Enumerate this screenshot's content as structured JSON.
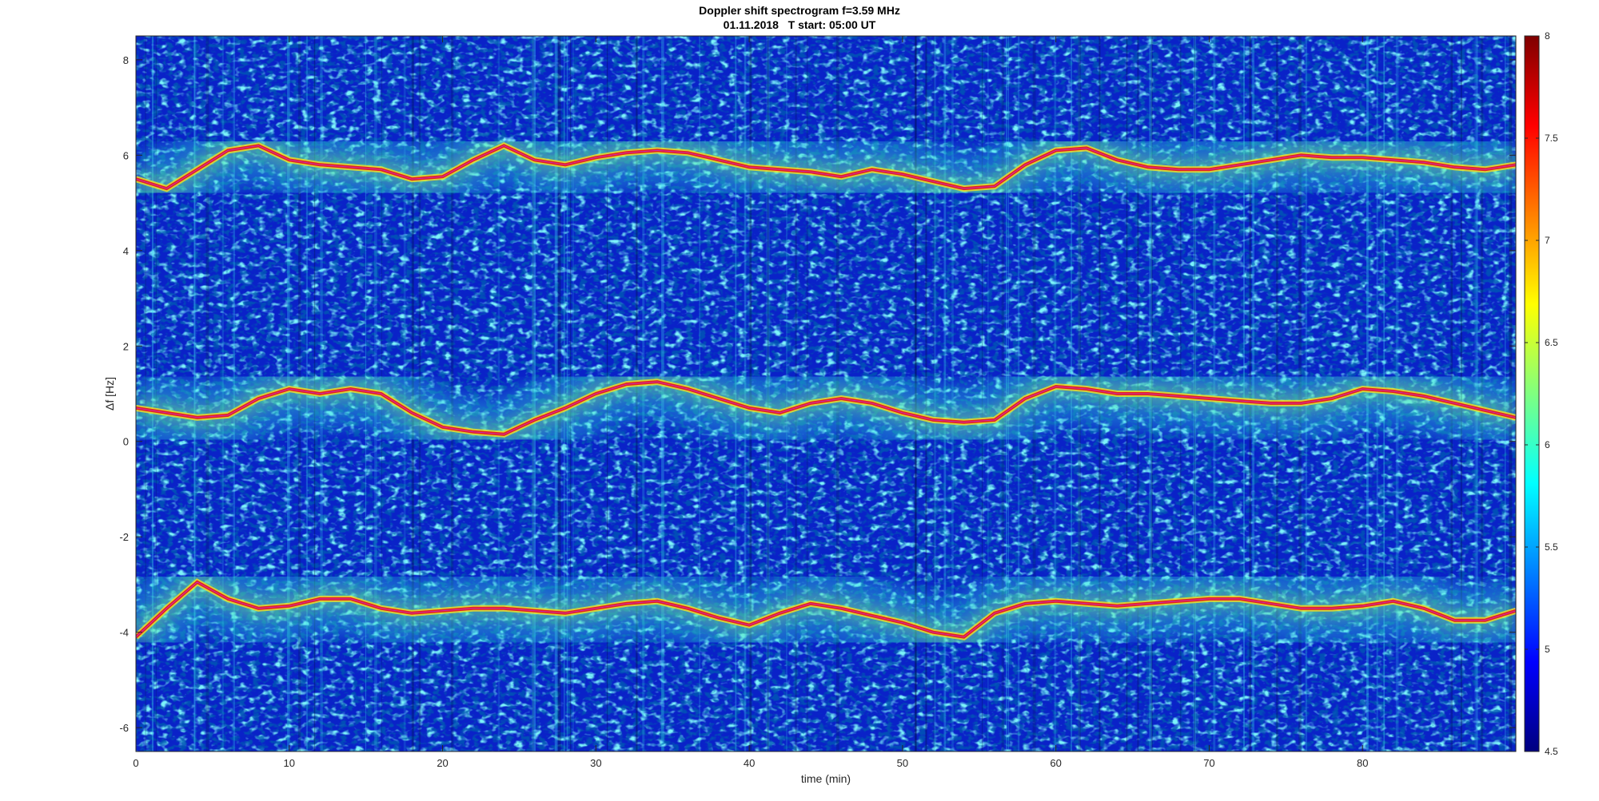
{
  "chart_data": {
    "type": "heatmap",
    "title": "Doppler shift spectrogram f=3.59 MHz",
    "subtitle": "01.11.2018   T start: 05:00 UT",
    "xlabel": "time (min)",
    "ylabel": "Δf [Hz]",
    "xlim": [
      0,
      90
    ],
    "ylim": [
      -6.5,
      8.5
    ],
    "x_ticks": [
      0,
      10,
      20,
      30,
      40,
      50,
      60,
      70,
      80
    ],
    "y_ticks": [
      -6,
      -4,
      -2,
      0,
      2,
      4,
      6,
      8
    ],
    "colorbar": {
      "range": [
        4.5,
        8
      ],
      "ticks": [
        4.5,
        5,
        5.5,
        6,
        6.5,
        7,
        7.5,
        8
      ],
      "colormap": "jet"
    },
    "traces": [
      {
        "x": [
          0,
          2,
          4,
          6,
          8,
          10,
          12,
          14,
          16,
          18,
          20,
          22,
          24,
          26,
          28,
          30,
          32,
          34,
          36,
          38,
          40,
          42,
          44,
          46,
          48,
          50,
          52,
          54,
          56,
          58,
          60,
          62,
          64,
          66,
          68,
          70,
          72,
          74,
          76,
          78,
          80,
          82,
          84,
          86,
          88,
          90
        ],
        "y": [
          5.5,
          5.3,
          5.7,
          6.1,
          6.2,
          5.9,
          5.8,
          5.75,
          5.7,
          5.5,
          5.55,
          5.9,
          6.2,
          5.9,
          5.8,
          5.95,
          6.05,
          6.1,
          6.05,
          5.9,
          5.75,
          5.7,
          5.65,
          5.55,
          5.7,
          5.6,
          5.45,
          5.3,
          5.35,
          5.8,
          6.1,
          6.15,
          5.9,
          5.75,
          5.7,
          5.7,
          5.8,
          5.9,
          6.0,
          5.95,
          5.95,
          5.9,
          5.85,
          5.75,
          5.7,
          5.8
        ]
      },
      {
        "x": [
          0,
          2,
          4,
          6,
          8,
          10,
          12,
          14,
          16,
          18,
          20,
          22,
          24,
          26,
          28,
          30,
          32,
          34,
          36,
          38,
          40,
          42,
          44,
          46,
          48,
          50,
          52,
          54,
          56,
          58,
          60,
          62,
          64,
          66,
          68,
          70,
          72,
          74,
          76,
          78,
          80,
          82,
          84,
          86,
          88,
          90
        ],
        "y": [
          0.7,
          0.6,
          0.5,
          0.55,
          0.9,
          1.1,
          1.0,
          1.1,
          1.0,
          0.6,
          0.3,
          0.2,
          0.15,
          0.45,
          0.7,
          1.0,
          1.2,
          1.25,
          1.1,
          0.9,
          0.7,
          0.6,
          0.8,
          0.9,
          0.8,
          0.6,
          0.45,
          0.4,
          0.45,
          0.9,
          1.15,
          1.1,
          1.0,
          1.0,
          0.95,
          0.9,
          0.85,
          0.8,
          0.8,
          0.9,
          1.1,
          1.05,
          0.95,
          0.8,
          0.65,
          0.5
        ]
      },
      {
        "x": [
          0,
          2,
          4,
          6,
          8,
          10,
          12,
          14,
          16,
          18,
          20,
          22,
          24,
          26,
          28,
          30,
          32,
          34,
          36,
          38,
          40,
          42,
          44,
          46,
          48,
          50,
          52,
          54,
          56,
          58,
          60,
          62,
          64,
          66,
          68,
          70,
          72,
          74,
          76,
          78,
          80,
          82,
          84,
          86,
          88,
          90
        ],
        "y": [
          -4.1,
          -3.5,
          -2.95,
          -3.3,
          -3.5,
          -3.45,
          -3.3,
          -3.3,
          -3.5,
          -3.6,
          -3.55,
          -3.5,
          -3.5,
          -3.55,
          -3.6,
          -3.5,
          -3.4,
          -3.35,
          -3.5,
          -3.7,
          -3.85,
          -3.6,
          -3.4,
          -3.5,
          -3.65,
          -3.8,
          -4.0,
          -4.1,
          -3.6,
          -3.4,
          -3.35,
          -3.4,
          -3.45,
          -3.4,
          -3.35,
          -3.3,
          -3.3,
          -3.4,
          -3.5,
          -3.5,
          -3.45,
          -3.35,
          -3.5,
          -3.75,
          -3.75,
          -3.55
        ]
      }
    ]
  }
}
